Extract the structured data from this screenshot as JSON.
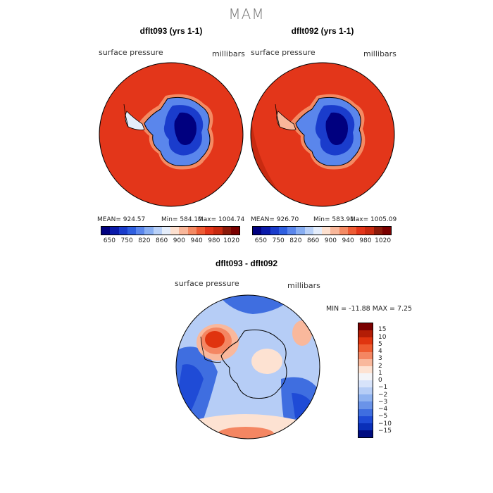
{
  "season": "MAM",
  "left_panel": {
    "title": "dflt093 (yrs 1-1)",
    "variable": "surface pressure",
    "units": "millibars",
    "mean": "MEAN= 924.57",
    "min": "Min= 584.10",
    "max": "Max= 1004.74"
  },
  "right_panel": {
    "title": "dflt092 (yrs 1-1)",
    "variable": "surface pressure",
    "units": "millibars",
    "mean": "MEAN= 926.70",
    "min": "Min= 583.91",
    "max": "Max= 1005.09"
  },
  "diff_panel": {
    "title": "dflt093 - dflt092",
    "variable": "surface pressure",
    "units": "millibars",
    "minmax": "MIN = -11.88 MAX =    7.25"
  },
  "colorbar_top": {
    "colors": [
      "#00007f",
      "#0a1aaa",
      "#1a3ccc",
      "#2f5fe0",
      "#5a86ec",
      "#88aef2",
      "#b9d1f8",
      "#e4edfb",
      "#fde0cf",
      "#f9b79a",
      "#f48a63",
      "#ee5c35",
      "#e3361a",
      "#c82a10",
      "#8b1a0a",
      "#7a0000"
    ],
    "tick_labels": [
      "650",
      "750",
      "820",
      "860",
      "900",
      "940",
      "980",
      "1020"
    ]
  },
  "colorbar_diff": {
    "colors": [
      "#7a0000",
      "#b31d06",
      "#e0340f",
      "#ee5b30",
      "#f48662",
      "#f9b89c",
      "#fde2d2",
      "#f3f4f8",
      "#d7e3fa",
      "#b6cdf6",
      "#8fb2f0",
      "#6a93e8",
      "#3f6ee0",
      "#1f4bd6",
      "#0a2fb8",
      "#000c80"
    ],
    "tick_labels": [
      "15",
      "10",
      "5",
      "4",
      "3",
      "2",
      "1",
      "0",
      "−1",
      "−2",
      "−3",
      "−4",
      "−5",
      "−10",
      "−15"
    ]
  }
}
